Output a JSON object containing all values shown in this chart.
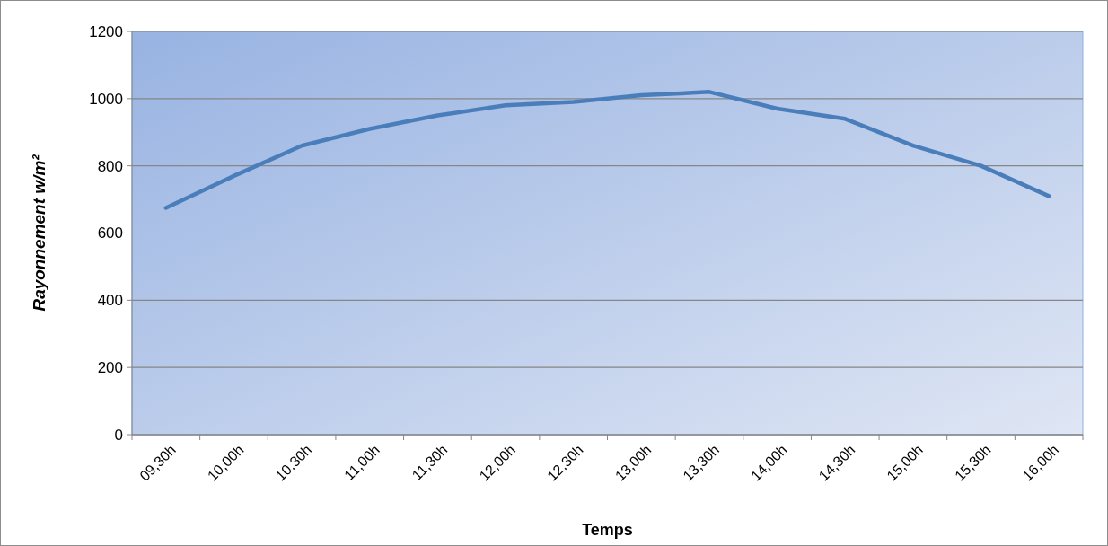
{
  "chart_data": {
    "type": "line",
    "xlabel": "Temps",
    "ylabel": "Rayonnement w/m²",
    "categories": [
      "09,30h",
      "10,00h",
      "10,30h",
      "11,00h",
      "11,30h",
      "12,00h",
      "12,30h",
      "13,00h",
      "13,30h",
      "14,00h",
      "14,30h",
      "15,00h",
      "15,30h",
      "16,00h"
    ],
    "series": [
      {
        "color": "#4a7ebb",
        "values": [
          675,
          770,
          860,
          910,
          950,
          980,
          990,
          1010,
          1020,
          970,
          940,
          860,
          800,
          710
        ]
      }
    ],
    "ylim": [
      0,
      1200
    ],
    "yticks": [
      0,
      200,
      400,
      600,
      800,
      1000,
      1200
    ],
    "grid": "y",
    "marker": "none",
    "line_style": "solid"
  }
}
